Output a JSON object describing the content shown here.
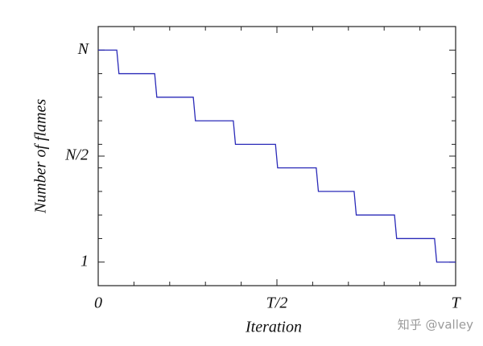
{
  "chart_data": {
    "type": "line",
    "xlabel": "Iteration",
    "ylabel": "Number of flames",
    "watermark": "知乎 @valley",
    "series": [
      {
        "color": "#2a2ab8",
        "x": [
          0,
          0.052,
          0.058,
          0.158,
          0.164,
          0.266,
          0.272,
          0.378,
          0.384,
          0.496,
          0.502,
          0.61,
          0.616,
          0.716,
          0.722,
          0.829,
          0.835,
          0.941,
          0.947,
          1
        ],
        "values": [
          10,
          10,
          9,
          9,
          8,
          8,
          7,
          7,
          6,
          6,
          5,
          5,
          4,
          4,
          3,
          3,
          2,
          2,
          1,
          1
        ]
      }
    ],
    "xlim": [
      0,
      1
    ],
    "xticks": [
      0,
      {
        "value": 0.5,
        "label": "T/2"
      },
      {
        "value": 1,
        "label": "T"
      }
    ],
    "xminor_ticks": [
      0.1,
      0.2,
      0.3,
      0.4,
      0.6,
      0.7,
      0.8,
      0.9
    ],
    "ylim": [
      0,
      11
    ],
    "yticks": [
      1,
      {
        "value": 5.5,
        "label": "N/2"
      },
      {
        "value": 10,
        "label": "N"
      }
    ],
    "yminor_ticks": [
      2,
      3,
      4,
      5,
      6,
      7,
      8,
      9
    ],
    "grid": false
  }
}
